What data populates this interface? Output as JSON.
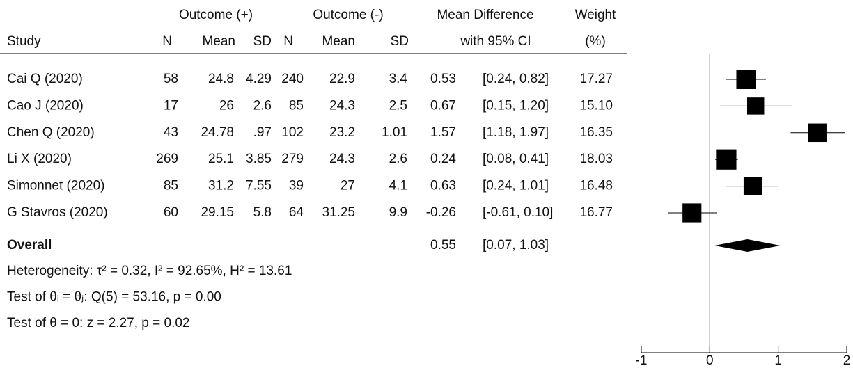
{
  "chart_data": {
    "type": "forest",
    "group_headers": [
      "Outcome (+)",
      "Outcome (-)",
      "Mean Difference",
      "Weight"
    ],
    "columns": [
      "Study",
      "N",
      "Mean",
      "SD",
      "N",
      "Mean",
      "SD",
      "with 95% CI",
      "(%)"
    ],
    "studies": [
      {
        "name": "Cai Q (2020)",
        "cells": [
          "58",
          "24.8",
          "4.29",
          "240",
          "22.9",
          "3.4"
        ],
        "md": 0.53,
        "ci": [
          0.24,
          0.82
        ],
        "ci_label": "[0.24, 0.82]",
        "weight": 17.27,
        "weight_label": "17.27"
      },
      {
        "name": "Cao J (2020)",
        "cells": [
          "17",
          "26",
          "2.6",
          "85",
          "24.3",
          "2.5"
        ],
        "md": 0.67,
        "ci": [
          0.15,
          1.2
        ],
        "ci_label": "[0.15, 1.20]",
        "weight": 15.1,
        "weight_label": "15.10"
      },
      {
        "name": "Chen Q (2020)",
        "cells": [
          "43",
          "24.78",
          ".97",
          "102",
          "23.2",
          "1.01"
        ],
        "md": 1.57,
        "ci": [
          1.18,
          1.97
        ],
        "ci_label": "[1.18, 1.97]",
        "weight": 16.35,
        "weight_label": "16.35"
      },
      {
        "name": "Li X (2020)",
        "cells": [
          "269",
          "25.1",
          "3.85",
          "279",
          "24.3",
          "2.6"
        ],
        "md": 0.24,
        "ci": [
          0.08,
          0.41
        ],
        "ci_label": "[0.08, 0.41]",
        "weight": 18.03,
        "weight_label": "18.03"
      },
      {
        "name": "Simonnet (2020)",
        "cells": [
          "85",
          "31.2",
          "7.55",
          "39",
          "27",
          "4.1"
        ],
        "md": 0.63,
        "ci": [
          0.24,
          1.01
        ],
        "ci_label": "[0.24, 1.01]",
        "weight": 16.48,
        "weight_label": "16.48"
      },
      {
        "name": "G Stavros (2020)",
        "cells": [
          "60",
          "29.15",
          "5.8",
          "64",
          "31.25",
          "9.9"
        ],
        "md": -0.26,
        "ci": [
          -0.61,
          0.1
        ],
        "ci_label": "[-0.61, 0.10]",
        "weight": 16.77,
        "weight_label": "16.77"
      }
    ],
    "overall": {
      "name": "Overall",
      "md": 0.55,
      "ci": [
        0.07,
        1.03
      ],
      "ci_label": "[0.07, 1.03]"
    },
    "notes": [
      "Heterogeneity: τ² = 0.32, I² = 92.65%, H² = 13.61",
      "Test of θᵢ = θⱼ: Q(5) = 53.16, p = 0.00",
      "Test of θ = 0: z = 2.27, p = 0.02"
    ],
    "xlim": [
      -1,
      2
    ],
    "xticks": [
      -1,
      0,
      1,
      2
    ],
    "null_line": 0,
    "color": "#000000"
  }
}
